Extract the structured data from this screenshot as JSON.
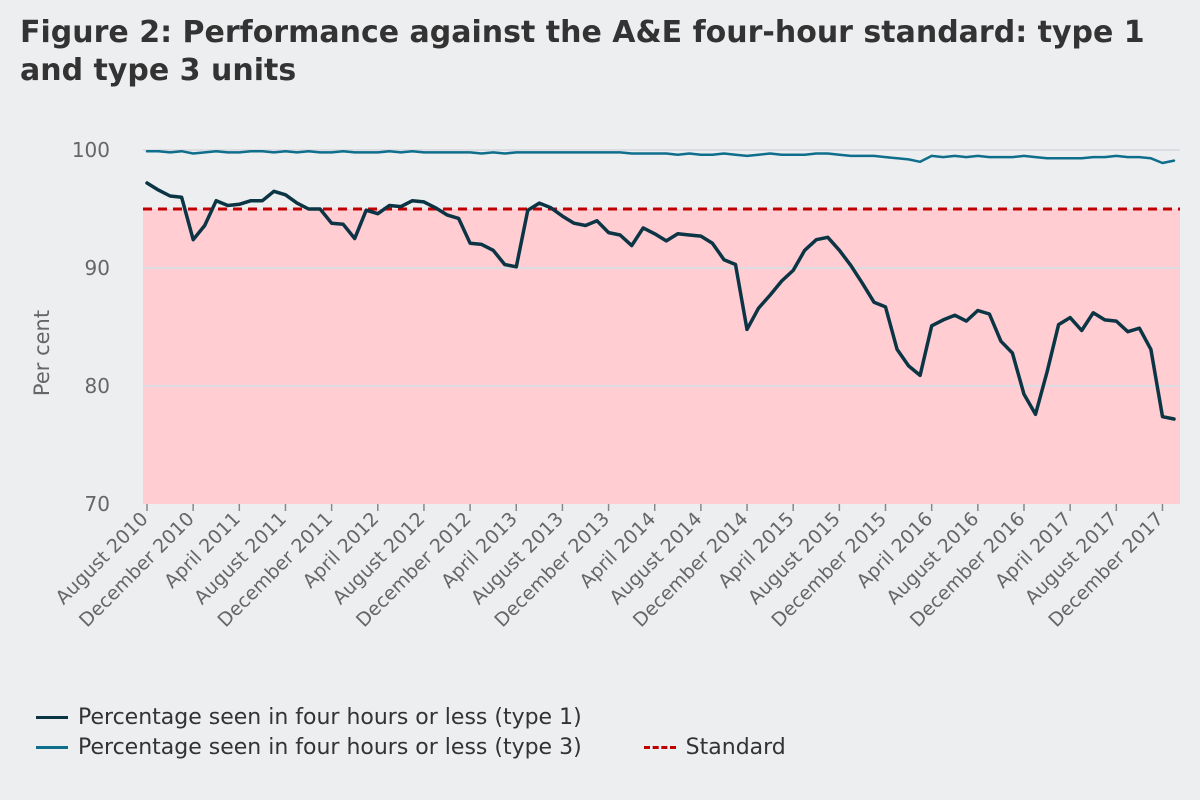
{
  "title": "Figure 2: Performance against the A&E four-hour standard: type 1 and type 3 units",
  "chart_data": {
    "type": "line",
    "ylabel": "Per cent",
    "xlabel": "",
    "ylim": [
      70,
      100
    ],
    "yticks": [
      70,
      80,
      90,
      100
    ],
    "grid": true,
    "legend_position": "bottom",
    "x_start": "August 2010",
    "x_labels": [
      "August 2010",
      "December 2010",
      "April 2011",
      "August 2011",
      "December 2011",
      "April 2012",
      "August 2012",
      "December 2012",
      "April 2013",
      "August 2013",
      "December 2013",
      "April 2014",
      "August 2014",
      "December 2014",
      "April 2015",
      "August 2015",
      "December 2015",
      "April 2016",
      "August 2016",
      "December 2016",
      "April 2017",
      "August 2017",
      "December 2017"
    ],
    "series": [
      {
        "name": "Percentage seen in four hours or less (type 1)",
        "color": "#0b3545",
        "style": "solid",
        "values": [
          97.2,
          96.6,
          96.1,
          96.0,
          92.4,
          93.6,
          95.7,
          95.3,
          95.4,
          95.7,
          95.7,
          96.5,
          96.2,
          95.5,
          95.0,
          95.0,
          93.8,
          93.7,
          92.5,
          94.9,
          94.6,
          95.3,
          95.2,
          95.7,
          95.6,
          95.1,
          94.5,
          94.2,
          92.1,
          92.0,
          91.5,
          90.3,
          90.1,
          94.9,
          95.5,
          95.1,
          94.4,
          93.8,
          93.6,
          94.0,
          93.0,
          92.8,
          91.9,
          93.4,
          92.9,
          92.3,
          92.9,
          92.8,
          92.7,
          92.1,
          90.7,
          90.3,
          84.8,
          86.6,
          87.7,
          88.9,
          89.8,
          91.5,
          92.4,
          92.6,
          91.5,
          90.2,
          88.7,
          87.1,
          86.7,
          83.1,
          81.7,
          80.9,
          85.1,
          85.6,
          86.0,
          85.5,
          86.4,
          86.1,
          83.8,
          82.8,
          79.3,
          77.6,
          81.2,
          85.2,
          85.8,
          84.7,
          86.2,
          85.6,
          85.5,
          84.6,
          84.9,
          83.1,
          77.4,
          77.2
        ]
      },
      {
        "name": "Percentage seen in four hours or less (type 3)",
        "color": "#0f6e8c",
        "style": "solid",
        "values": [
          99.9,
          99.9,
          99.8,
          99.9,
          99.7,
          99.8,
          99.9,
          99.8,
          99.8,
          99.9,
          99.9,
          99.8,
          99.9,
          99.8,
          99.9,
          99.8,
          99.8,
          99.9,
          99.8,
          99.8,
          99.8,
          99.9,
          99.8,
          99.9,
          99.8,
          99.8,
          99.8,
          99.8,
          99.8,
          99.7,
          99.8,
          99.7,
          99.8,
          99.8,
          99.8,
          99.8,
          99.8,
          99.8,
          99.8,
          99.8,
          99.8,
          99.8,
          99.7,
          99.7,
          99.7,
          99.7,
          99.6,
          99.7,
          99.6,
          99.6,
          99.7,
          99.6,
          99.5,
          99.6,
          99.7,
          99.6,
          99.6,
          99.6,
          99.7,
          99.7,
          99.6,
          99.5,
          99.5,
          99.5,
          99.4,
          99.3,
          99.2,
          99.0,
          99.5,
          99.4,
          99.5,
          99.4,
          99.5,
          99.4,
          99.4,
          99.4,
          99.5,
          99.4,
          99.3,
          99.3,
          99.3,
          99.3,
          99.4,
          99.4,
          99.5,
          99.4,
          99.4,
          99.3,
          98.9,
          99.1
        ]
      },
      {
        "name": "Standard",
        "color": "#c00000",
        "style": "dashed",
        "constant": 95
      }
    ],
    "shaded_region": {
      "from": 70,
      "to": 95,
      "color": "#ffcdd2"
    }
  }
}
